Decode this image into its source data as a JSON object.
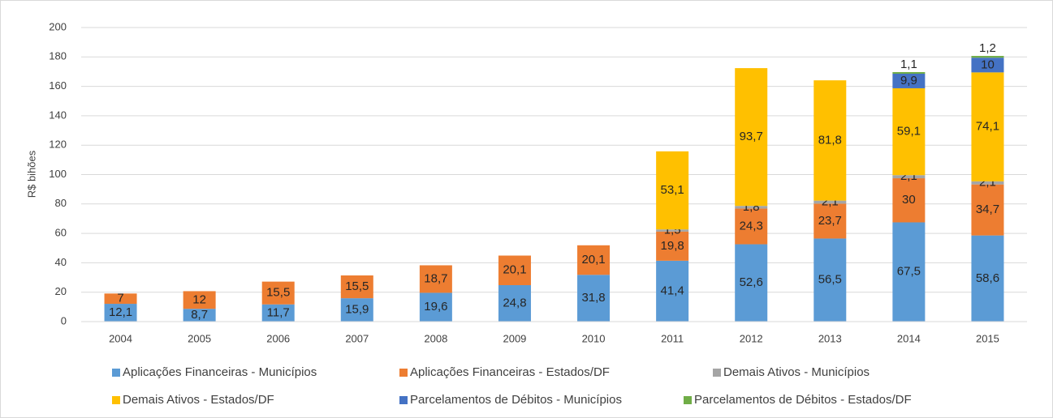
{
  "chart_data": {
    "type": "stacked_bar",
    "y_label": "R$ bihões",
    "categories": [
      "2004",
      "2005",
      "2006",
      "2007",
      "2008",
      "2009",
      "2010",
      "2011",
      "2012",
      "2013",
      "2014",
      "2015"
    ],
    "series": [
      {
        "name": "Aplicações Financeiras - Municípios",
        "color": "#5B9BD5",
        "values": [
          12.1,
          8.7,
          11.7,
          15.9,
          19.6,
          24.8,
          31.8,
          41.4,
          52.6,
          56.5,
          67.5,
          58.6
        ],
        "value_labels": [
          "12,1",
          "8,7",
          "11,7",
          "15,9",
          "19,6",
          "24,8",
          "31,8",
          "41,4",
          "52,6",
          "56,5",
          "67,5",
          "58,6"
        ]
      },
      {
        "name": "Aplicações Financeiras - Estados/DF",
        "color": "#ED7D31",
        "values": [
          7,
          12,
          15.5,
          15.5,
          18.7,
          20.1,
          20.1,
          19.8,
          24.3,
          23.7,
          30,
          34.7
        ],
        "value_labels": [
          "7",
          "12",
          "15,5",
          "15,5",
          "18,7",
          "20,1",
          "20,1",
          "19,8",
          "24,3",
          "23,7",
          "30",
          "34,7"
        ]
      },
      {
        "name": "Demais Ativos - Municípios",
        "color": "#A5A5A5",
        "values": [
          null,
          null,
          null,
          null,
          null,
          null,
          null,
          1.5,
          1.8,
          2.1,
          2.1,
          2.1
        ],
        "value_labels": [
          null,
          null,
          null,
          null,
          null,
          null,
          null,
          "1,5",
          "1,8",
          "2,1",
          "2,1",
          "2,1"
        ]
      },
      {
        "name": "Demais Ativos - Estados/DF",
        "color": "#FFC000",
        "values": [
          null,
          null,
          null,
          null,
          null,
          null,
          null,
          53.1,
          93.7,
          81.8,
          59.1,
          74.1
        ],
        "value_labels": [
          null,
          null,
          null,
          null,
          null,
          null,
          null,
          "53,1",
          "93,7",
          "81,8",
          "59,1",
          "74,1"
        ]
      },
      {
        "name": "Parcelamentos de Débitos - Municípios",
        "color": "#4472C4",
        "values": [
          null,
          null,
          null,
          null,
          null,
          null,
          null,
          null,
          null,
          null,
          9.9,
          10
        ],
        "value_labels": [
          null,
          null,
          null,
          null,
          null,
          null,
          null,
          null,
          null,
          null,
          "9,9",
          "10"
        ]
      },
      {
        "name": "Parcelamentos de Débitos - Estados/DF",
        "color": "#70AD47",
        "values": [
          null,
          null,
          null,
          null,
          null,
          null,
          null,
          null,
          null,
          null,
          1.1,
          1.2
        ],
        "value_labels": [
          null,
          null,
          null,
          null,
          null,
          null,
          null,
          null,
          null,
          null,
          "1,1",
          "1,2"
        ]
      }
    ],
    "ylim": [
      0,
      200
    ],
    "yticks": [
      0,
      20,
      40,
      60,
      80,
      100,
      120,
      140,
      160,
      180,
      200
    ],
    "grid": true,
    "legend": "bottom"
  }
}
